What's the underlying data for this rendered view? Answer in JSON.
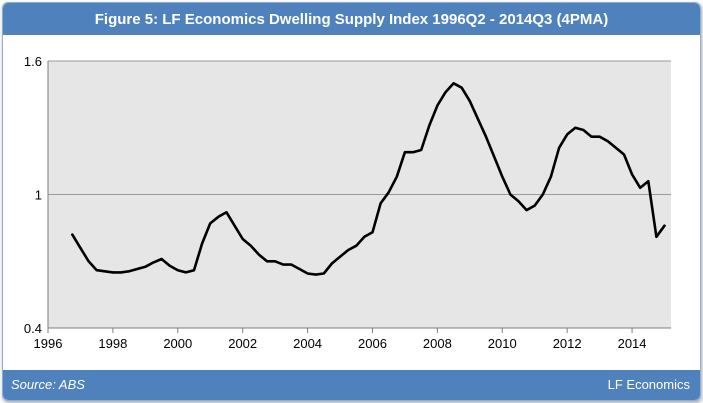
{
  "header": {
    "title": "Figure 5: LF Economics Dwelling Supply Index 1996Q2 - 2014Q3 (4PMA)"
  },
  "footer": {
    "source": "Source: ABS",
    "brand": "LF Economics"
  },
  "colors": {
    "header_bg": "#4f81bd",
    "plot_bg": "#e6e6e6",
    "line": "#000000"
  },
  "chart_data": {
    "type": "line",
    "title": "Figure 5: LF Economics Dwelling Supply Index 1996Q2 - 2014Q3 (4PMA)",
    "xlabel": "",
    "ylabel": "",
    "xlim": [
      1996,
      2015.2
    ],
    "ylim": [
      0.4,
      1.6
    ],
    "xticks": [
      "1996",
      "1998",
      "2000",
      "2002",
      "2004",
      "2006",
      "2008",
      "2010",
      "2012",
      "2014"
    ],
    "yticks": [
      "0.4",
      "1",
      "1.6"
    ],
    "grid": "horizontal",
    "legend": "none",
    "series": [
      {
        "x": [
          1996.75,
          1997.0,
          1997.25,
          1997.5,
          1997.75,
          1998.0,
          1998.25,
          1998.5,
          1998.75,
          1999.0,
          1999.25,
          1999.5,
          1999.75,
          2000.0,
          2000.25,
          2000.5,
          2000.75,
          2001.0,
          2001.25,
          2001.5,
          2001.75,
          2002.0,
          2002.25,
          2002.5,
          2002.75,
          2003.0,
          2003.25,
          2003.5,
          2003.75,
          2004.0,
          2004.25,
          2004.5,
          2004.75,
          2005.0,
          2005.25,
          2005.5,
          2005.75,
          2006.0,
          2006.25,
          2006.5,
          2006.75,
          2007.0,
          2007.25,
          2007.5,
          2007.75,
          2008.0,
          2008.25,
          2008.5,
          2008.75,
          2009.0,
          2009.25,
          2009.5,
          2009.75,
          2010.0,
          2010.25,
          2010.5,
          2010.75,
          2011.0,
          2011.25,
          2011.5,
          2011.75,
          2012.0,
          2012.25,
          2012.5,
          2012.75,
          2013.0,
          2013.25,
          2013.5,
          2013.75,
          2014.0,
          2014.25,
          2014.5,
          2014.75,
          2015.0
        ],
        "y": [
          0.82,
          0.76,
          0.7,
          0.66,
          0.655,
          0.65,
          0.65,
          0.655,
          0.665,
          0.675,
          0.695,
          0.71,
          0.68,
          0.66,
          0.65,
          0.66,
          0.78,
          0.87,
          0.9,
          0.92,
          0.86,
          0.8,
          0.77,
          0.73,
          0.7,
          0.7,
          0.685,
          0.685,
          0.665,
          0.645,
          0.64,
          0.645,
          0.69,
          0.72,
          0.75,
          0.77,
          0.81,
          0.83,
          0.96,
          1.01,
          1.08,
          1.19,
          1.19,
          1.2,
          1.31,
          1.4,
          1.46,
          1.5,
          1.48,
          1.42,
          1.34,
          1.26,
          1.17,
          1.08,
          1.0,
          0.97,
          0.93,
          0.95,
          1.0,
          1.08,
          1.21,
          1.27,
          1.3,
          1.29,
          1.26,
          1.26,
          1.24,
          1.21,
          1.18,
          1.09,
          1.03,
          1.06,
          0.81,
          0.86
        ]
      }
    ]
  }
}
